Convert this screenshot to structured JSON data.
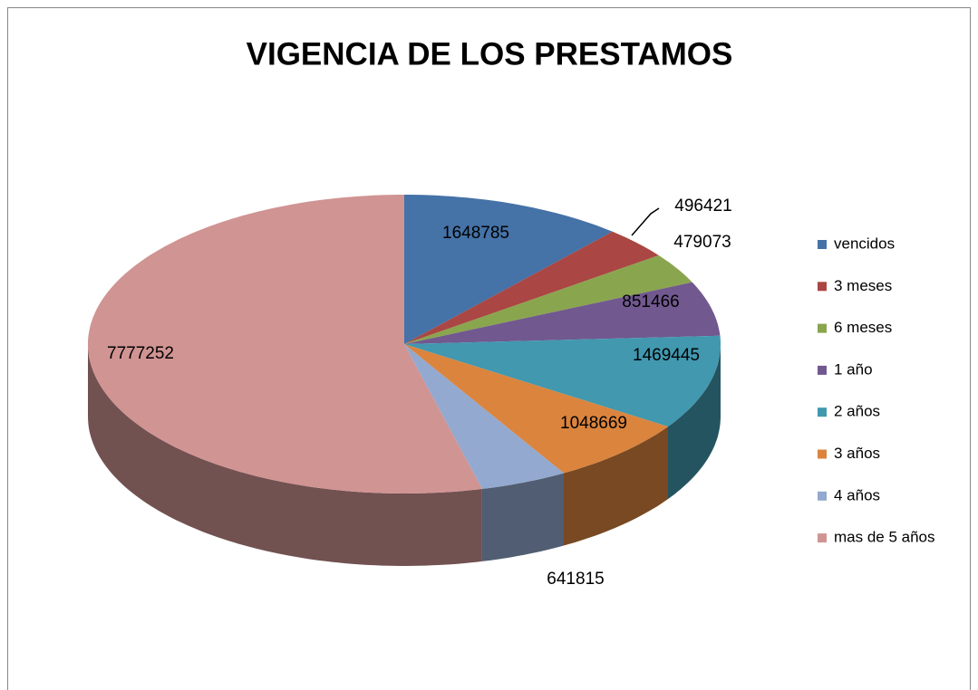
{
  "chart_data": {
    "type": "pie3d",
    "title": "VIGENCIA DE LOS PRESTAMOS",
    "categories": [
      "vencidos",
      "3 meses",
      "6 meses",
      "1 año",
      "2 años",
      "3 años",
      "4 años",
      "mas de 5 años"
    ],
    "values": [
      1648785,
      496421,
      479073,
      851466,
      1469445,
      1048669,
      641815,
      7777252
    ],
    "colors": [
      "#4572a7",
      "#aa4643",
      "#89a54e",
      "#71588f",
      "#4198af",
      "#db843d",
      "#93a9cf",
      "#d09493"
    ],
    "legend": "right"
  }
}
